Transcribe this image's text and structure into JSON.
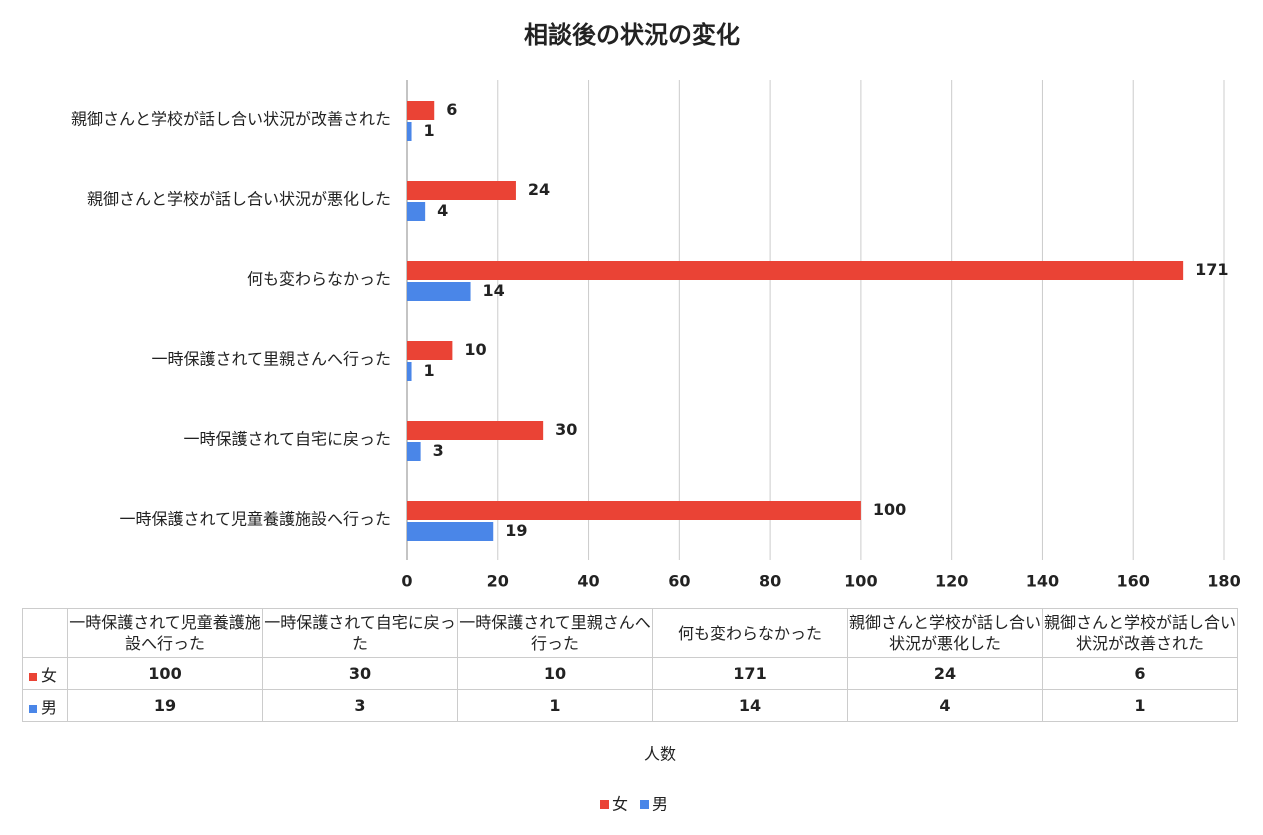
{
  "chart_data": {
    "type": "hbar",
    "title": "相談後の状況の変化",
    "categories": [
      "一時保護されて児童養護施設へ行った",
      "一時保護されて自宅に戻った",
      "一時保護されて里親さんへ行った",
      "何も変わらなかった",
      "親御さんと学校が話し合い状況が悪化した",
      "親御さんと学校が話し合い状況が改善された"
    ],
    "series": [
      {
        "name": "女",
        "color": "#ea4335",
        "values": [
          100,
          30,
          10,
          171,
          24,
          6
        ]
      },
      {
        "name": "男",
        "color": "#4a86e8",
        "values": [
          19,
          3,
          1,
          14,
          4,
          1
        ]
      }
    ],
    "xlim": [
      0,
      180
    ],
    "xticks": [
      0,
      20,
      40,
      60,
      80,
      100,
      120,
      140,
      160,
      180
    ],
    "xlabel": "人数",
    "grid": true,
    "legend": "bottom",
    "data_table": true
  }
}
